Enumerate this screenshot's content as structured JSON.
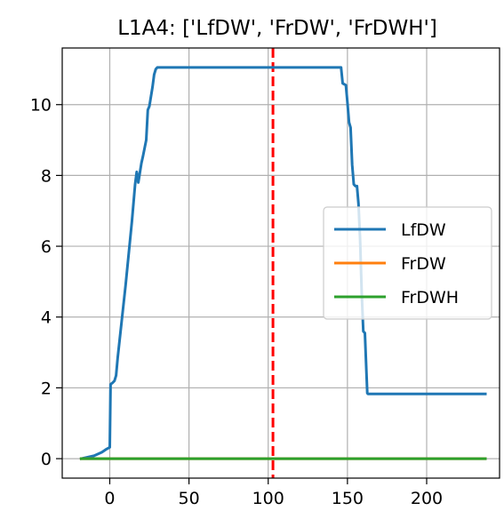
{
  "chart_data": {
    "type": "line",
    "title": "L1A4: ['LfDW', 'FrDW', 'FrDWH']",
    "xlabel": "",
    "ylabel": "",
    "xlim": [
      -30,
      246
    ],
    "ylim": [
      -0.55,
      11.6
    ],
    "xticks": [
      0,
      50,
      100,
      150,
      200
    ],
    "yticks": [
      0,
      2,
      4,
      6,
      8,
      10
    ],
    "grid": true,
    "legend_position": "center-right",
    "vline": {
      "x": 103,
      "color": "#ff0000",
      "style": "dashed"
    },
    "series": [
      {
        "name": "LfDW",
        "color": "#1f77b4",
        "x": [
          -18,
          -10,
          -5,
          -2,
          0,
          0.5,
          2,
          3,
          4,
          5,
          10,
          14,
          16,
          17,
          18,
          20,
          21,
          23,
          24,
          25,
          27,
          28,
          29,
          30,
          40,
          60,
          80,
          100,
          120,
          140,
          146,
          147,
          149,
          150,
          151,
          152,
          153,
          154,
          155,
          156,
          157,
          158,
          159,
          160,
          161,
          162,
          162.5,
          163,
          170,
          200,
          237
        ],
        "y": [
          0.0,
          0.08,
          0.18,
          0.27,
          0.32,
          2.1,
          2.15,
          2.2,
          2.35,
          2.85,
          4.9,
          6.7,
          7.75,
          8.1,
          7.8,
          8.35,
          8.55,
          9.0,
          9.85,
          9.95,
          10.5,
          10.85,
          11.0,
          11.05,
          11.05,
          11.05,
          11.05,
          11.05,
          11.05,
          11.05,
          11.05,
          10.6,
          10.55,
          10.05,
          9.5,
          9.35,
          8.3,
          7.75,
          7.7,
          7.7,
          7.2,
          6.2,
          4.7,
          3.6,
          3.55,
          2.4,
          1.85,
          1.83,
          1.83,
          1.83,
          1.83
        ]
      },
      {
        "name": "FrDW",
        "color": "#ff7f0e",
        "x": [
          -18,
          237
        ],
        "y": [
          0,
          0
        ]
      },
      {
        "name": "FrDWH",
        "color": "#2ca02c",
        "x": [
          -18,
          237
        ],
        "y": [
          0,
          0
        ]
      }
    ]
  }
}
